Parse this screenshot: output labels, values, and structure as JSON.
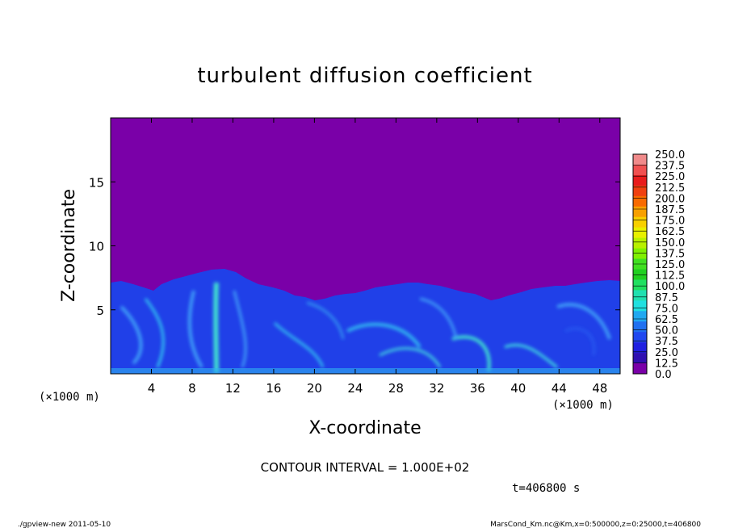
{
  "chart_data": {
    "type": "heatmap",
    "title": "turbulent diffusion coefficient",
    "xlabel": "X-coordinate",
    "ylabel": "Z-coordinate",
    "x_unit": "(×1000 m)",
    "y_unit": "(×1000 m)",
    "xlim": [
      0,
      50
    ],
    "ylim": [
      0,
      20
    ],
    "x_ticks": [
      4,
      8,
      12,
      16,
      20,
      24,
      28,
      32,
      36,
      40,
      44,
      48
    ],
    "y_ticks": [
      5,
      10,
      15
    ],
    "colorbar": {
      "levels": [
        "250.0",
        "237.5",
        "225.0",
        "212.5",
        "200.0",
        "187.5",
        "175.0",
        "162.5",
        "150.0",
        "137.5",
        "125.0",
        "112.5",
        "100.0",
        "87.5",
        "75.0",
        "62.5",
        "50.0",
        "37.5",
        "25.0",
        "12.5",
        "0.0"
      ],
      "colors": [
        "#f08a8a",
        "#f05050",
        "#e81c1c",
        "#f04010",
        "#f86a00",
        "#f8a000",
        "#f8d000",
        "#e8f000",
        "#b8f000",
        "#80f000",
        "#40e020",
        "#20d020",
        "#20e060",
        "#20e0b0",
        "#20e0e0",
        "#20a8f0",
        "#2070f0",
        "#2048f0",
        "#2020e0",
        "#3010b0",
        "#7a00a8"
      ]
    },
    "contour_interval": "CONTOUR INTERVAL = 1.000E+02",
    "time_label": "t=406800 s"
  },
  "footer": {
    "left": "./gpview-new   2011-05-10",
    "right": "MarsCond_Km.nc@Km,x=0:500000,z=0:25000,t=406800"
  },
  "colors": {
    "background_field": "#7a00a8",
    "turbulent_layer": "#2040e8"
  }
}
